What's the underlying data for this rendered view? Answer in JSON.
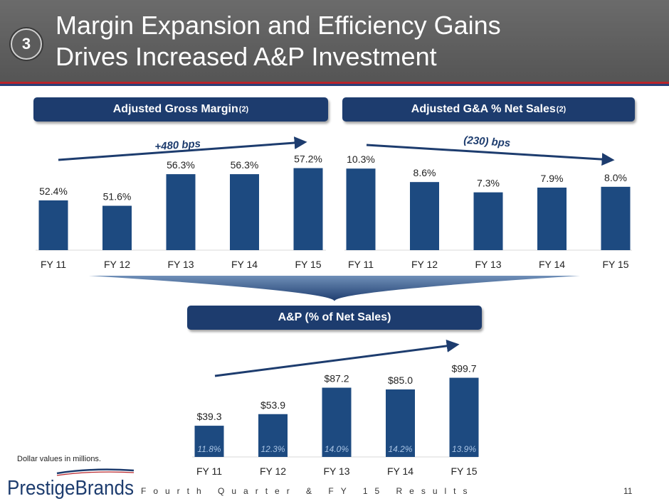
{
  "slide": {
    "badge": "3",
    "title_line1": "Margin Expansion and Efficiency Gains",
    "title_line2": "Drives Increased A&P Investment",
    "footnote": "Dollar values in millions.",
    "footer": "Fourth Quarter & FY 15 Results",
    "page_number": "11",
    "logo_text": "PrestigeBrands",
    "colors": {
      "bar": "#1d4a80",
      "pill": "#1d3c6e",
      "arrow": "#1d3c6e",
      "header": "#5f5f5f"
    }
  },
  "panels": {
    "gross_margin": {
      "label": "Adjusted Gross Margin",
      "sup": "(2)",
      "annotation": "+480 bps"
    },
    "ga": {
      "label": "Adjusted G&A % Net Sales",
      "sup": "(2)",
      "annotation": "(230) bps"
    },
    "ap": {
      "label": "A&P (% of Net Sales)"
    }
  },
  "chart_data": [
    {
      "type": "bar",
      "categories": [
        "FY 11",
        "FY 12",
        "FY 13",
        "FY 14",
        "FY 15"
      ],
      "values": [
        52.4,
        51.6,
        56.3,
        56.3,
        57.2
      ],
      "value_labels": [
        "52.4%",
        "51.6%",
        "56.3%",
        "56.3%",
        "57.2%"
      ],
      "ylim": [
        45,
        58
      ]
    },
    {
      "type": "bar",
      "categories": [
        "FY 11",
        "FY 12",
        "FY 13",
        "FY 14",
        "FY 15"
      ],
      "values": [
        10.3,
        8.6,
        7.3,
        7.9,
        8.0
      ],
      "value_labels": [
        "10.3%",
        "8.6%",
        "7.3%",
        "7.9%",
        "8.0%"
      ],
      "ylim": [
        0,
        10.5
      ]
    },
    {
      "type": "bar",
      "categories": [
        "FY 11",
        "FY 12",
        "FY 13",
        "FY 14",
        "FY 15"
      ],
      "values": [
        39.3,
        53.9,
        87.2,
        85.0,
        99.7
      ],
      "value_labels": [
        "$39.3",
        "$53.9",
        "$87.2",
        "$85.0",
        "$99.7"
      ],
      "inner_labels": [
        "11.8%",
        "12.3%",
        "14.0%",
        "14.2%",
        "13.9%"
      ],
      "ylim": [
        0,
        102
      ]
    }
  ]
}
